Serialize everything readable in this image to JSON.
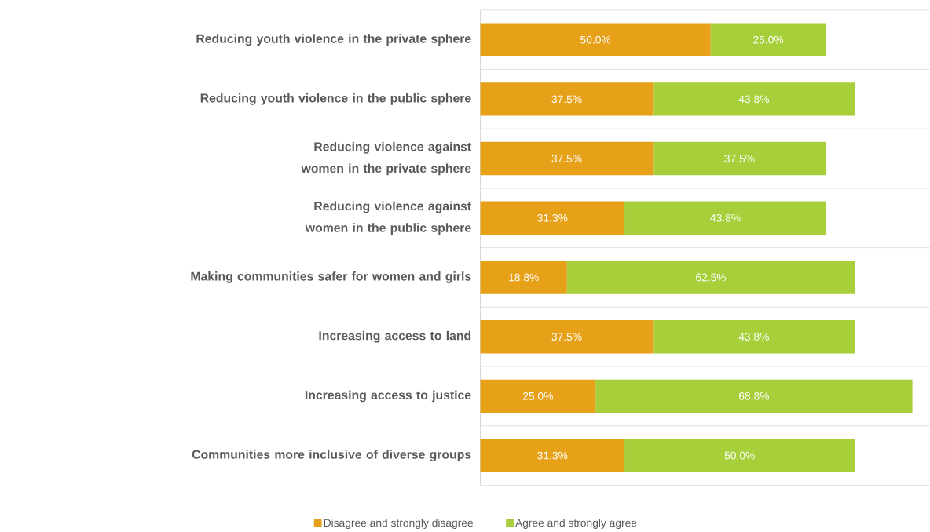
{
  "chart_data": {
    "type": "bar",
    "orientation": "horizontal",
    "stacked": true,
    "categories": [
      "Reducing youth violence in the private sphere",
      "Reducing youth violence in the public sphere",
      "Reducing violence against women in the private sphere",
      "Reducing violence against women in the public sphere",
      "Making communities safer for women and girls",
      "Increasing access to land",
      "Increasing access to justice",
      "Communities more inclusive of diverse groups"
    ],
    "series": [
      {
        "name": "Disagree and strongly disagree",
        "color": "#e6a118",
        "values": [
          50.0,
          37.5,
          37.5,
          31.3,
          18.8,
          37.5,
          25.0,
          31.3
        ],
        "value_labels": [
          "50.0%",
          "37.5%",
          "37.5%",
          "31.3%",
          "18.8%",
          "37.5%",
          "25.0%",
          "31.3%"
        ]
      },
      {
        "name": "Agree and strongly agree",
        "color": "#a7cf3a",
        "values": [
          25.0,
          43.8,
          37.5,
          43.8,
          62.5,
          43.8,
          68.8,
          50.0
        ],
        "value_labels": [
          "25.0%",
          "43.8%",
          "37.5%",
          "43.8%",
          "62.5%",
          "43.8%",
          "68.8%",
          "50.0%"
        ]
      }
    ],
    "grid": "y",
    "legend": "bottom",
    "tick_labels": "y"
  }
}
